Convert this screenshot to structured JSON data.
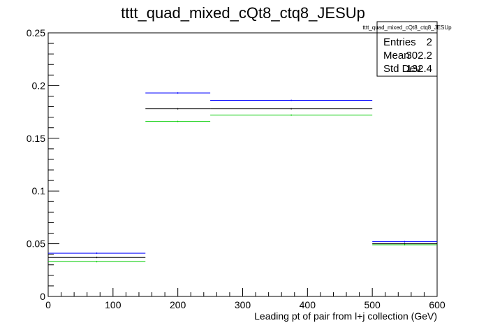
{
  "colors": {
    "series": [
      "#000000",
      "#0000ff",
      "#00cc00"
    ],
    "frame": "#000000",
    "background": "#ffffff"
  },
  "chart_data": {
    "type": "bar",
    "title": "tttt_quad_mixed_cQt8_ctq8_JESUp",
    "xlabel": "Leading pt of pair from l+j collection (GeV)",
    "ylabel": "",
    "xlim": [
      0,
      600
    ],
    "ylim": [
      0,
      0.25
    ],
    "grid": false,
    "bin_edges": [
      0,
      150,
      250,
      500,
      600
    ],
    "series": [
      {
        "values": [
          0.037,
          0.178,
          0.178,
          0.05
        ]
      },
      {
        "values": [
          0.041,
          0.193,
          0.186,
          0.052
        ]
      },
      {
        "values": [
          0.033,
          0.166,
          0.172,
          0.049
        ]
      }
    ],
    "x_ticks": [
      0,
      100,
      200,
      300,
      400,
      500,
      600
    ],
    "y_ticks": [
      0,
      0.05,
      0.1,
      0.15,
      0.2,
      0.25
    ],
    "x_tick_labels": [
      "0",
      "100",
      "200",
      "300",
      "400",
      "500",
      "600"
    ],
    "y_tick_labels": [
      "0",
      "0.05",
      "0.1",
      "0.15",
      "0.2",
      "0.25"
    ],
    "stats_box": {
      "title": "tttt_quad_mixed_cQt8_ctq8_JESUp",
      "rows": [
        {
          "label": "Entries",
          "value": "2"
        },
        {
          "label": "Mean",
          "value": "302.2"
        },
        {
          "label": "Std Dev",
          "value": "132.4"
        }
      ],
      "placement": "top-right"
    }
  }
}
